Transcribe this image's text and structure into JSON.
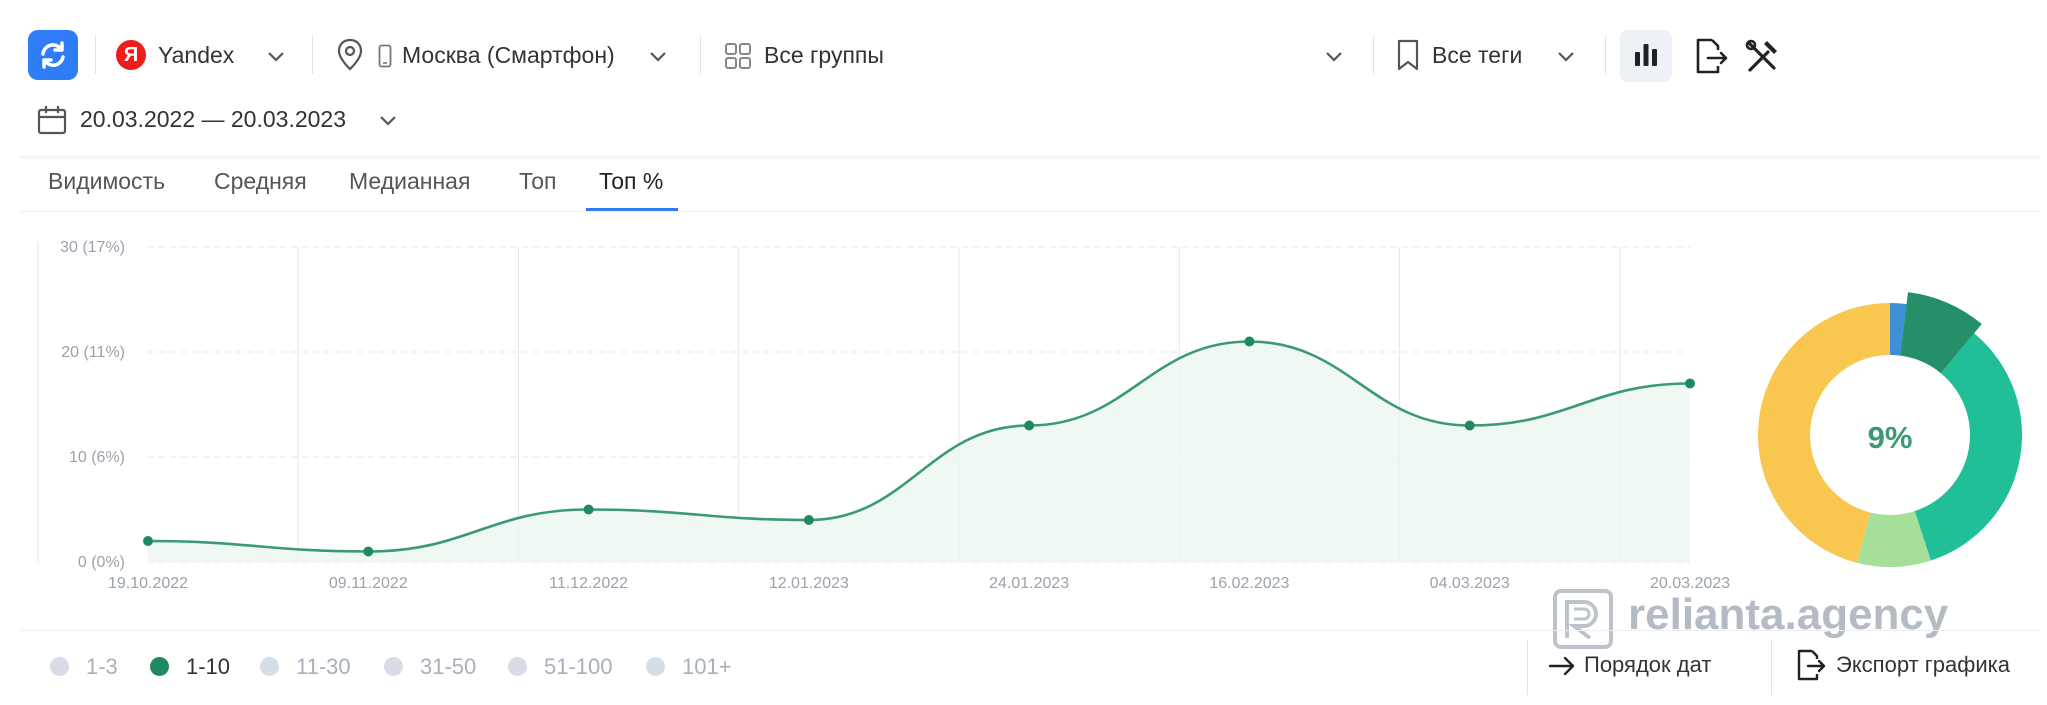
{
  "toolbar": {
    "search_engine": "Yandex",
    "yandex_logo_letter": "Я",
    "region": "Москва (Смартфон)",
    "groups": "Все группы",
    "tags": "Все теги",
    "date_range": "20.03.2022 — 20.03.2023"
  },
  "tabs": [
    {
      "label": "Видимость"
    },
    {
      "label": "Средняя"
    },
    {
      "label": "Медианная"
    },
    {
      "label": "Топ"
    },
    {
      "label": "Топ %",
      "active": true
    }
  ],
  "chart_data": [
    {
      "type": "area",
      "x": [
        "19.10.2022",
        "09.11.2022",
        "11.12.2022",
        "12.01.2023",
        "24.01.2023",
        "16.02.2023",
        "04.03.2023",
        "20.03.2023"
      ],
      "y": [
        2,
        1,
        5,
        4,
        13,
        21,
        13,
        17
      ],
      "y_tick_labels": [
        "0 (0%)",
        "10 (6%)",
        "20 (11%)",
        "30 (17%)"
      ],
      "ylim": [
        0,
        30
      ],
      "grid": true,
      "color": "#3a9a72"
    },
    {
      "type": "pie",
      "center_label": "9%",
      "slices": [
        {
          "value": 2,
          "color": "#3d8fd6"
        },
        {
          "value": 9,
          "color": "#258f6a"
        },
        {
          "value": 34,
          "color": "#21bf98"
        },
        {
          "value": 9,
          "color": "#a6df9a"
        },
        {
          "value": 46,
          "color": "#f9c74f"
        }
      ]
    }
  ],
  "legend": [
    {
      "label": "1-3",
      "active": false
    },
    {
      "label": "1-10",
      "active": true
    },
    {
      "label": "11-30",
      "active": false
    },
    {
      "label": "31-50",
      "active": false
    },
    {
      "label": "51-100",
      "active": false
    },
    {
      "label": "101+",
      "active": false
    }
  ],
  "buttons": {
    "date_order": "Порядок дат",
    "export_chart": "Экспорт графика"
  },
  "watermark": "relianta.agency",
  "colors": {
    "accent_blue": "#2e7cf6",
    "line_green": "#3a9a72",
    "legend_active": "#1f8a5f",
    "legend_inactive": "#d6dde7"
  }
}
